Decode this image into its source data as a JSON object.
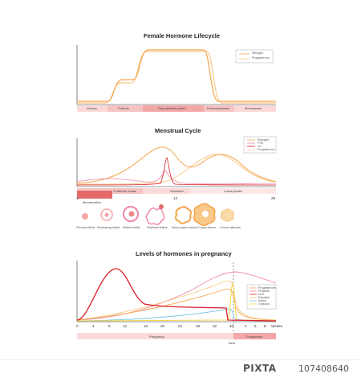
{
  "panel1": {
    "title": "Female Hormone Lifecycle",
    "legend": [
      "Estrogen",
      "Progesterone"
    ],
    "stages": [
      "Infancy",
      "Puberty",
      "Reproductive years",
      "Perimenopause",
      "Menopause"
    ]
  },
  "panel2": {
    "title": "Menstrual Cycle",
    "legend": [
      "Estrogen",
      "FSH",
      "LH",
      "Progesterone"
    ],
    "phases": [
      "Menstruation",
      "Follicular phase",
      "Ovulation",
      "Luteal phase"
    ],
    "ticks": [
      "1",
      "14",
      "28"
    ],
    "stages": [
      "Primary follicle",
      "Developing follicle",
      "Mature follicle",
      "Ruptured follicle",
      "Early corpus luteum",
      "Corpus luteum",
      "Corpus albicans"
    ]
  },
  "panel3": {
    "title": "Levels of hormones in pregnancy",
    "legend": [
      "Progesterone",
      "Prolactin",
      "hCG",
      "Estradiol",
      "Estriol",
      "Oxytocin"
    ],
    "ticks": [
      "0",
      "4",
      "8",
      "12",
      "16",
      "20",
      "24",
      "28",
      "32",
      "36",
      "40",
      "4",
      "6",
      "8"
    ],
    "weeks_label": "Weeks",
    "phases": [
      "Pregnancy",
      "Postpartum"
    ],
    "birth_label": "Birth"
  },
  "colors": {
    "orange": "#f5a54a",
    "light_orange": "#f9c98a",
    "red": "#d8202c",
    "pink": "#f08aa8",
    "blue": "#7cc6e0",
    "yellow": "#f3d44a",
    "bar_light": "#fbd9d9",
    "bar_dark": "#f3a7a7"
  },
  "stock": {
    "logo": "PIXTA",
    "id": "107408640"
  }
}
